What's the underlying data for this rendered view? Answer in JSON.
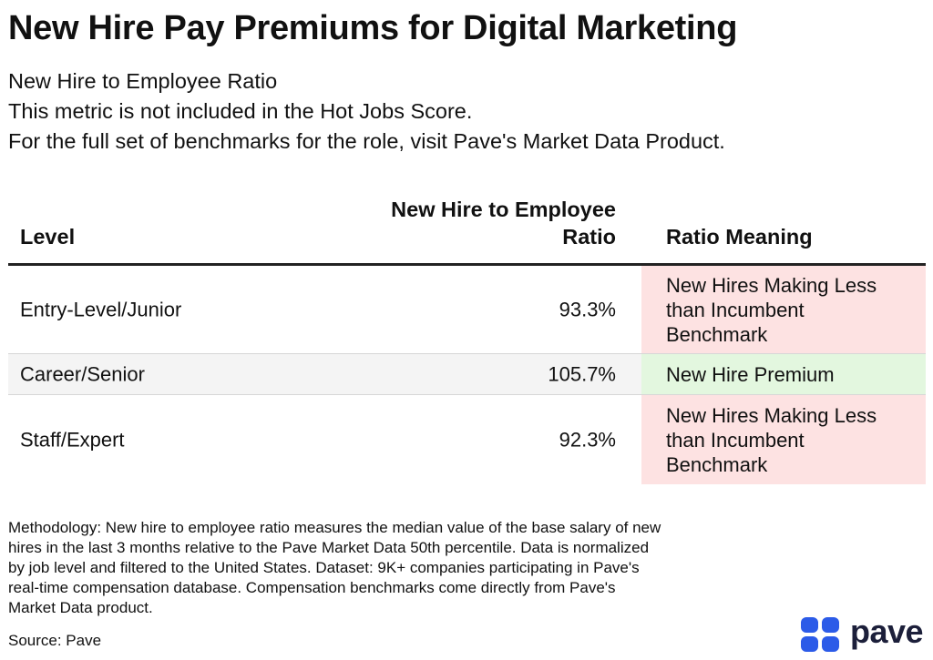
{
  "title": "New Hire Pay Premiums for Digital Marketing",
  "subtitle": {
    "line1": "New Hire to Employee Ratio",
    "line2": "This metric is not included in the Hot Jobs Score.",
    "line3": "For the full set of benchmarks for the role, visit Pave's Market Data Product."
  },
  "table": {
    "headers": {
      "level": "Level",
      "ratio_line1": "New Hire to Employee",
      "ratio_line2": "Ratio",
      "meaning": "Ratio Meaning"
    },
    "rows": [
      {
        "level": "Entry-Level/Junior",
        "ratio": "93.3%",
        "meaning_line1": "New Hires Making Less",
        "meaning_line2": "than Incumbent",
        "meaning_line3": "Benchmark",
        "status": "negative"
      },
      {
        "level": "Career/Senior",
        "ratio": "105.7%",
        "meaning_line1": "New Hire Premium",
        "status": "positive"
      },
      {
        "level": "Staff/Expert",
        "ratio": "92.3%",
        "meaning_line1": "New Hires Making Less",
        "meaning_line2": "than Incumbent",
        "meaning_line3": "Benchmark",
        "status": "negative"
      }
    ]
  },
  "methodology": {
    "line1": "Methodology: New hire to employee ratio measures the median value of the base salary of new",
    "line2": "hires in the last 3 months relative to the Pave Market Data 50th percentile. Data is normalized",
    "line3": "by job level and filtered to the United States. Dataset: 9K+ companies participating in Pave's",
    "line4": "real-time compensation database. Compensation benchmarks come directly from Pave's",
    "line5": "Market Data product."
  },
  "source": "Source: Pave",
  "logo": {
    "text": "pave",
    "icon": "pave-logo-icon"
  },
  "colors": {
    "negative_bg": "#fde2e2",
    "positive_bg": "#e3f7df",
    "brand": "#2c5be8"
  }
}
